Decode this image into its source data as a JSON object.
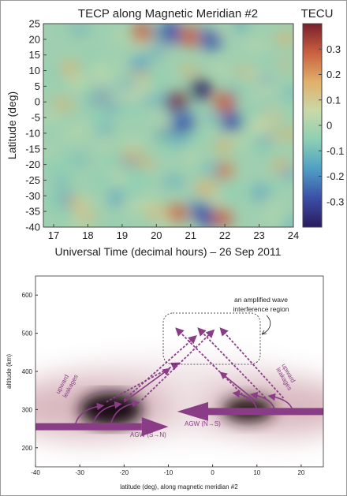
{
  "chart_data": [
    {
      "type": "heatmap",
      "title": "TECP along Magnetic Meridian #2",
      "xlabel": "Universal Time (decimal hours) – 26 Sep 2011",
      "ylabel": "Latitude (deg)",
      "xlim": [
        16.7,
        24
      ],
      "ylim": [
        -40,
        25
      ],
      "xticks": [
        "17",
        "18",
        "19",
        "20",
        "21",
        "22",
        "23",
        "24"
      ],
      "yticks": [
        "25",
        "20",
        "15",
        "10",
        "5",
        "0",
        "-5",
        "-10",
        "-15",
        "-20",
        "-25",
        "-30",
        "-35",
        "-40"
      ],
      "colorbar": {
        "label": "TECU",
        "range": [
          -0.4,
          0.4
        ],
        "ticks": [
          "0.3",
          "0.2",
          "0.1",
          "0",
          "-0.1",
          "-0.2",
          "-0.3"
        ],
        "colors": [
          "#2a1b5e",
          "#3b4fa8",
          "#4f9fc4",
          "#8ccfb3",
          "#c9d9a8",
          "#e0b06a",
          "#c9603f",
          "#7a1f2c"
        ]
      },
      "features": [
        {
          "x": 19.6,
          "y": 22,
          "value": 0.3
        },
        {
          "x": 20.4,
          "y": 21,
          "value": -0.3
        },
        {
          "x": 21.0,
          "y": 21,
          "value": 0.3
        },
        {
          "x": 21.6,
          "y": 20,
          "value": -0.3
        },
        {
          "x": 20.6,
          "y": 0,
          "value": 0.35
        },
        {
          "x": 21.3,
          "y": 4,
          "value": -0.35
        },
        {
          "x": 22.0,
          "y": 0,
          "value": 0.3
        },
        {
          "x": 20.8,
          "y": -7,
          "value": -0.3
        },
        {
          "x": 22.2,
          "y": -6,
          "value": -0.3
        },
        {
          "x": 20.6,
          "y": -36,
          "value": 0.3
        },
        {
          "x": 21.3,
          "y": -36,
          "value": -0.3
        },
        {
          "x": 21.9,
          "y": -37,
          "value": 0.3
        }
      ]
    },
    {
      "type": "diagram",
      "xlabel": "latitude (deg), along magnetic meridian #2",
      "ylabel": "altitude (km)",
      "xlim": [
        -40,
        25
      ],
      "ylim": [
        150,
        650
      ],
      "xticks": [
        "-40",
        "-30",
        "-20",
        "-10",
        "0",
        "10",
        "20"
      ],
      "yticks": [
        "600",
        "500",
        "400",
        "300",
        "200"
      ],
      "annotations": {
        "interference": [
          "an amplified wave",
          "interference region"
        ],
        "upward_left": [
          "upward",
          "leakages"
        ],
        "upward_right": [
          "upward",
          "leakages"
        ],
        "agw_sn": "AGW (S→N)",
        "agw_ns": "AGW (N→S)"
      },
      "colors": {
        "arrow": "#8a3d86",
        "density": "#1a1012"
      }
    }
  ]
}
